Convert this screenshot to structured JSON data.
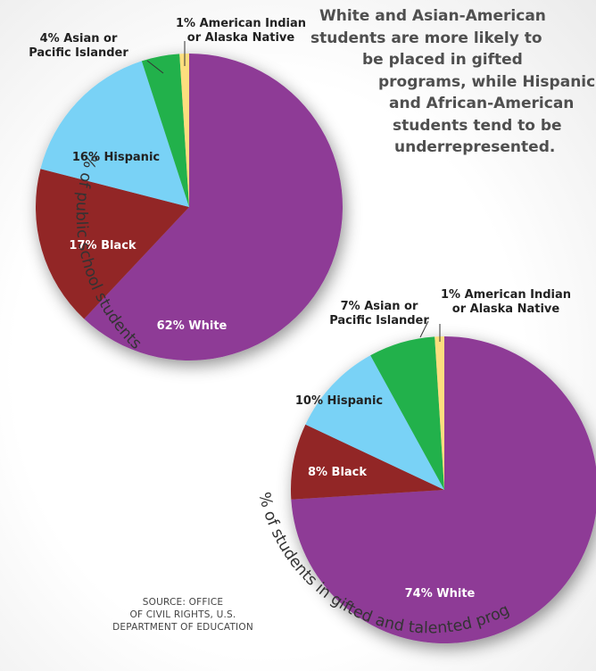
{
  "headline": [
    "White and Asian-American",
    "students are more likely to",
    "be placed in gifted",
    "programs, while Hispanic",
    "and African-American",
    "students tend to be",
    "underrepresented."
  ],
  "source": [
    "SOURCE: OFFICE",
    "OF CIVIL RIGHTS, U.S.",
    "DEPARTMENT OF EDUCATION"
  ],
  "colors": {
    "White": "#8e3a96",
    "Black": "#922528",
    "Hispanic": "#79d2f6",
    "Asian or Pacific Islander": "#22b14c",
    "American Indian or Alaska Native": "#fcde7e"
  },
  "chart_data": [
    {
      "type": "pie",
      "title": "% of public school students",
      "slices": [
        {
          "category": "White",
          "value": 62,
          "label": [
            "62% White"
          ]
        },
        {
          "category": "Black",
          "value": 17,
          "label": [
            "17% Black"
          ]
        },
        {
          "category": "Hispanic",
          "value": 16,
          "label": [
            "16% Hispanic"
          ]
        },
        {
          "category": "Asian or Pacific Islander",
          "value": 4,
          "label": [
            "4% Asian or",
            "Pacific Islander"
          ]
        },
        {
          "category": "American Indian or Alaska Native",
          "value": 1,
          "label": [
            "1% American Indian",
            "or Alaska Native"
          ]
        }
      ]
    },
    {
      "type": "pie",
      "title": "% of students in gifted and talented programs",
      "slices": [
        {
          "category": "White",
          "value": 74,
          "label": [
            "74% White"
          ]
        },
        {
          "category": "Black",
          "value": 8,
          "label": [
            "8% Black"
          ]
        },
        {
          "category": "Hispanic",
          "value": 10,
          "label": [
            "10% Hispanic"
          ]
        },
        {
          "category": "Asian or Pacific Islander",
          "value": 7,
          "label": [
            "7% Asian or",
            "Pacific Islander"
          ]
        },
        {
          "category": "American Indian or Alaska Native",
          "value": 1,
          "label": [
            "1% American Indian",
            "or Alaska Native"
          ]
        }
      ]
    }
  ]
}
